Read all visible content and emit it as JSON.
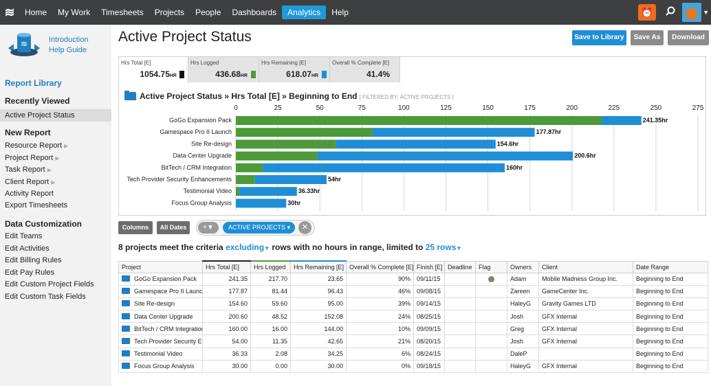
{
  "nav": {
    "items": [
      "Home",
      "My Work",
      "Timesheets",
      "Projects",
      "People",
      "Dashboards",
      "Analytics",
      "Help"
    ],
    "active": "Analytics",
    "timer_icon": "alarm-clock-icon",
    "search_icon": "search-icon"
  },
  "sidebar": {
    "intro_line1": "Introduction",
    "intro_line2": "Help Guide",
    "report_library": "Report Library",
    "recently_viewed": "Recently Viewed",
    "recent_item": "Active Project Status",
    "new_report": "New Report",
    "new_report_items": [
      "Resource Report",
      "Project Report",
      "Task Report",
      "Client Report",
      "Activity Report",
      "Export Timesheets"
    ],
    "data_customization": "Data Customization",
    "custom_items": [
      "Edit Teams",
      "Edit Activities",
      "Edit Billing Rules",
      "Edit Pay Rules",
      "Edit Custom Project Fields",
      "Edit Custom Task Fields"
    ]
  },
  "header": {
    "title": "Active Project Status",
    "save_library": "Save to Library",
    "save_as": "Save As",
    "download": "Download"
  },
  "metrics": [
    {
      "label": "Hrs Total [E]",
      "value": "1054.75",
      "unit": "HR",
      "color": "#111111"
    },
    {
      "label": "Hrs Logged",
      "value": "436.68",
      "unit": "HR",
      "color": "#4c9a3a"
    },
    {
      "label": "Hrs Remaining [E]",
      "value": "618.07",
      "unit": "HR",
      "color": "#1f8ed6"
    },
    {
      "label": "Overall % Complete [E]",
      "value": "41.4%",
      "unit": "",
      "color": ""
    }
  ],
  "chart_header": {
    "title": "Active Project Status » Hrs Total [E] » Beginning to End",
    "filter": "[ FILTERED BY: ACTIVE PROJECTS ]"
  },
  "chart_data": {
    "type": "bar",
    "orientation": "horizontal",
    "stacked": true,
    "categories": [
      "GoGo Expansion Pack",
      "Gamespace Pro II Launch",
      "Site Re-design",
      "Data Center Upgrade",
      "BitTech / CRM Integration",
      "Tech Provider Security Enhancements",
      "Testimonial Video",
      "Focus Group Analysis"
    ],
    "series": [
      {
        "values": [
          217.7,
          81.44,
          59.6,
          48.52,
          16.0,
          11.35,
          2.08,
          0.0
        ],
        "color": "#4c9a3a"
      },
      {
        "values": [
          23.65,
          96.43,
          95.0,
          152.08,
          144.0,
          42.65,
          34.25,
          30.0
        ],
        "color": "#1f8ed6"
      }
    ],
    "data_labels": [
      "241.35hr",
      "177.87hr",
      "154.6hr",
      "200.6hr",
      "160hr",
      "54hr",
      "36.33hr",
      "30hr"
    ],
    "xlim": [
      0,
      275
    ],
    "xticks": [
      0,
      25,
      50,
      75,
      100,
      125,
      150,
      175,
      200,
      225,
      250,
      275
    ],
    "grid": true
  },
  "filters": {
    "columns": "Columns",
    "all_dates": "All Dates",
    "active_pill": "ACTIVE PROJECTS",
    "filter_icon": "filter-icon",
    "close_icon": "close-icon"
  },
  "criteria": {
    "prefix": "8 projects meet the criteria ",
    "excluding": "excluding",
    "middle": " rows with no hours in range, limited to ",
    "limit": "25 rows"
  },
  "table": {
    "columns": [
      "Project",
      "Hrs Total [E]",
      "Hrs Logged",
      "Hrs Remaining [E]",
      "Overall % Complete [E]",
      "Finish [E]",
      "Deadline",
      "Flag",
      "Owners",
      "Client",
      "Date Range"
    ],
    "rows": [
      {
        "project": "GoGo Expansion Pack",
        "total": "241.35",
        "logged": "217.70",
        "remaining": "23.65",
        "pct": "90%",
        "finish": "09/11/15",
        "deadline": "",
        "flag": true,
        "owner": "Adam",
        "client": "Mobile Madness Group Inc.",
        "range": "Beginning to End"
      },
      {
        "project": "Gamespace Pro II Launch",
        "total": "177.87",
        "logged": "81.44",
        "remaining": "96.43",
        "pct": "46%",
        "finish": "09/08/15",
        "deadline": "",
        "flag": false,
        "owner": "Zareen",
        "client": "GameCenter Inc.",
        "range": "Beginning to End"
      },
      {
        "project": "Site Re-design",
        "total": "154.60",
        "logged": "59.60",
        "remaining": "95.00",
        "pct": "39%",
        "finish": "09/14/15",
        "deadline": "",
        "flag": false,
        "owner": "HaleyG",
        "client": "Gravity Games LTD",
        "range": "Beginning to End"
      },
      {
        "project": "Data Center Upgrade",
        "total": "200.60",
        "logged": "48.52",
        "remaining": "152.08",
        "pct": "24%",
        "finish": "08/25/15",
        "deadline": "",
        "flag": false,
        "owner": "Josh",
        "client": "GFX Internal",
        "range": "Beginning to End"
      },
      {
        "project": "BitTech / CRM Integration",
        "total": "160.00",
        "logged": "16.00",
        "remaining": "144.00",
        "pct": "10%",
        "finish": "09/09/15",
        "deadline": "",
        "flag": false,
        "owner": "Greg",
        "client": "GFX Internal",
        "range": "Beginning to End"
      },
      {
        "project": "Tech Provider Security Enhancements",
        "total": "54.00",
        "logged": "11.35",
        "remaining": "42.65",
        "pct": "21%",
        "finish": "08/20/15",
        "deadline": "",
        "flag": false,
        "owner": "Josh",
        "client": "GFX Internal",
        "range": "Beginning to End"
      },
      {
        "project": "Testimonial Video",
        "total": "36.33",
        "logged": "2.08",
        "remaining": "34.25",
        "pct": "6%",
        "finish": "08/24/15",
        "deadline": "",
        "flag": false,
        "owner": "DaleP",
        "client": "",
        "range": "Beginning to End"
      },
      {
        "project": "Focus Group Analysis",
        "total": "30.00",
        "logged": "0.00",
        "remaining": "30.00",
        "pct": "0%",
        "finish": "09/18/15",
        "deadline": "",
        "flag": false,
        "owner": "HaleyG",
        "client": "GFX Internal",
        "range": "Beginning to End"
      }
    ]
  }
}
